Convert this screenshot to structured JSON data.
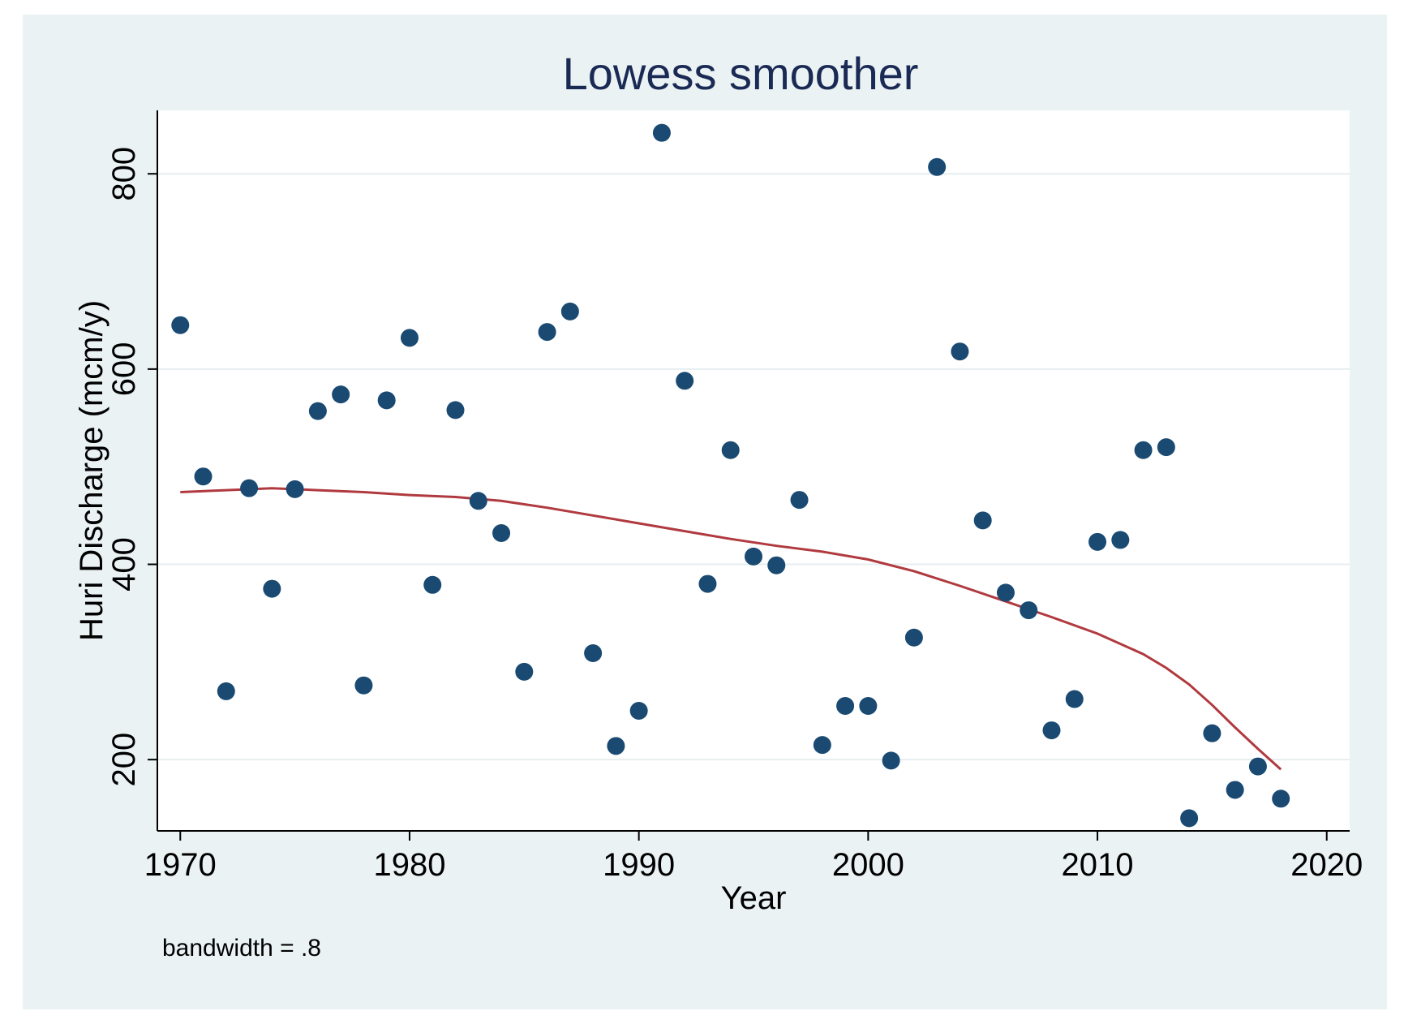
{
  "chart_data": {
    "type": "scatter",
    "title": "Lowess smoother",
    "xlabel": "Year",
    "ylabel": "Huri Discharge (mcm/y)",
    "note": "bandwidth = .8",
    "xlim": [
      1969,
      2021
    ],
    "ylim": [
      127,
      865
    ],
    "x_ticks": [
      1970,
      1980,
      1990,
      2000,
      2010,
      2020
    ],
    "y_ticks": [
      200,
      400,
      600,
      800
    ],
    "grid": true,
    "legend": "none",
    "colors": {
      "points": "#1a4a72",
      "smoother": "#b03a3f",
      "plot_bg": "#ffffff",
      "outer_bg": "#eaf2f3",
      "grid": "#e6eef0",
      "title": "#1a2a55"
    },
    "points": [
      {
        "x": 1970,
        "y": 645
      },
      {
        "x": 1971,
        "y": 490
      },
      {
        "x": 1972,
        "y": 270
      },
      {
        "x": 1973,
        "y": 478
      },
      {
        "x": 1974,
        "y": 375
      },
      {
        "x": 1975,
        "y": 477
      },
      {
        "x": 1976,
        "y": 557
      },
      {
        "x": 1977,
        "y": 574
      },
      {
        "x": 1978,
        "y": 276
      },
      {
        "x": 1979,
        "y": 568
      },
      {
        "x": 1980,
        "y": 632
      },
      {
        "x": 1981,
        "y": 379
      },
      {
        "x": 1982,
        "y": 558
      },
      {
        "x": 1983,
        "y": 465
      },
      {
        "x": 1984,
        "y": 432
      },
      {
        "x": 1985,
        "y": 290
      },
      {
        "x": 1986,
        "y": 638
      },
      {
        "x": 1987,
        "y": 659
      },
      {
        "x": 1988,
        "y": 309
      },
      {
        "x": 1989,
        "y": 214
      },
      {
        "x": 1990,
        "y": 250
      },
      {
        "x": 1991,
        "y": 842
      },
      {
        "x": 1992,
        "y": 588
      },
      {
        "x": 1993,
        "y": 380
      },
      {
        "x": 1994,
        "y": 517
      },
      {
        "x": 1995,
        "y": 408
      },
      {
        "x": 1996,
        "y": 399
      },
      {
        "x": 1997,
        "y": 466
      },
      {
        "x": 1998,
        "y": 215
      },
      {
        "x": 1999,
        "y": 255
      },
      {
        "x": 2000,
        "y": 255
      },
      {
        "x": 2001,
        "y": 199
      },
      {
        "x": 2002,
        "y": 325
      },
      {
        "x": 2003,
        "y": 807
      },
      {
        "x": 2004,
        "y": 618
      },
      {
        "x": 2005,
        "y": 445
      },
      {
        "x": 2006,
        "y": 371
      },
      {
        "x": 2007,
        "y": 353
      },
      {
        "x": 2008,
        "y": 230
      },
      {
        "x": 2009,
        "y": 262
      },
      {
        "x": 2010,
        "y": 423
      },
      {
        "x": 2011,
        "y": 425
      },
      {
        "x": 2012,
        "y": 517
      },
      {
        "x": 2013,
        "y": 520
      },
      {
        "x": 2014,
        "y": 140
      },
      {
        "x": 2015,
        "y": 227
      },
      {
        "x": 2016,
        "y": 169
      },
      {
        "x": 2017,
        "y": 193
      },
      {
        "x": 2018,
        "y": 160
      }
    ],
    "smoother": [
      {
        "x": 1970,
        "y": 474
      },
      {
        "x": 1972,
        "y": 476
      },
      {
        "x": 1974,
        "y": 478
      },
      {
        "x": 1976,
        "y": 476
      },
      {
        "x": 1978,
        "y": 474
      },
      {
        "x": 1980,
        "y": 471
      },
      {
        "x": 1982,
        "y": 469
      },
      {
        "x": 1984,
        "y": 465
      },
      {
        "x": 1986,
        "y": 458
      },
      {
        "x": 1988,
        "y": 450
      },
      {
        "x": 1990,
        "y": 442
      },
      {
        "x": 1992,
        "y": 434
      },
      {
        "x": 1994,
        "y": 426
      },
      {
        "x": 1996,
        "y": 419
      },
      {
        "x": 1998,
        "y": 413
      },
      {
        "x": 2000,
        "y": 405
      },
      {
        "x": 2002,
        "y": 393
      },
      {
        "x": 2004,
        "y": 378
      },
      {
        "x": 2006,
        "y": 362
      },
      {
        "x": 2008,
        "y": 346
      },
      {
        "x": 2010,
        "y": 329
      },
      {
        "x": 2012,
        "y": 308
      },
      {
        "x": 2013,
        "y": 294
      },
      {
        "x": 2014,
        "y": 277
      },
      {
        "x": 2015,
        "y": 256
      },
      {
        "x": 2016,
        "y": 233
      },
      {
        "x": 2017,
        "y": 211
      },
      {
        "x": 2018,
        "y": 190
      }
    ]
  }
}
